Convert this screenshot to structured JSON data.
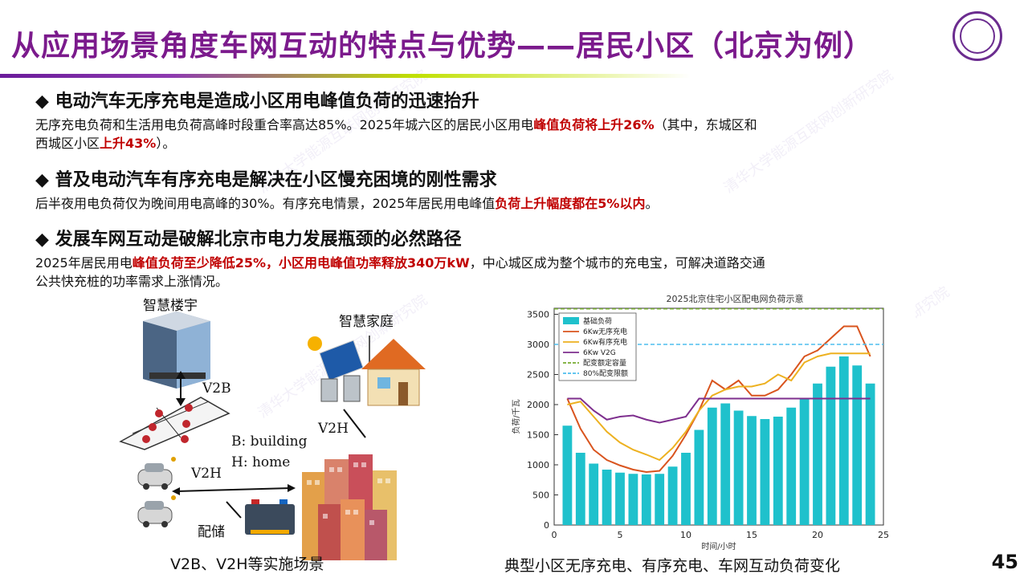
{
  "title": "从应用场景角度车网互动的特点与优势——居民小区（北京为例）",
  "watermark": "清华大学能源互联网创新研究院",
  "sections": [
    {
      "heading": "◆ 电动汽车无序充电是造成小区用电峰值负荷的迅速抬升",
      "p1": "无序充电负荷和生活用电负荷高峰时段重合率高达85%。2025年城六区的居民小区用电",
      "p1_red": "峰值负荷将上升26%",
      "p2": "（其中，东城区和",
      "p3": "西城区小区",
      "p3_red": "上升43%",
      "p4": "）。"
    },
    {
      "heading": "◆ 普及电动汽车有序充电是解决在小区慢充困境的刚性需求",
      "p1": "后半夜用电负荷仅为晚间用电高峰的30%。有序充电情景，2025年居民用电峰值",
      "p1_red": "负荷上升幅度都在5%以内",
      "p2": "。"
    },
    {
      "heading": "◆ 发展车网互动是破解北京市电力发展瓶颈的必然路径",
      "p1": "2025年居民用电",
      "p1_red": "峰值负荷至少降低25%，小区用电峰值功率释放340万kW",
      "p2": "，中心城区成为整个城市的充电宝，可解决道路交通",
      "p3": "公共快充桩的功率需求上涨情况。"
    }
  ],
  "diagram": {
    "smart_building": "智慧楼宇",
    "smart_home": "智慧家庭",
    "v2b": "V2B",
    "v2h_top": "V2H",
    "v2h_left": "V2H",
    "legend_b": "B: building",
    "legend_h": "H: home",
    "storage": "配储",
    "caption": "V2B、V2H等实施场景"
  },
  "chart_data": {
    "type": "bar",
    "title": "2025北京住宅小区配电网负荷示意",
    "xlabel": "时间/小时",
    "ylabel": "负荷/千瓦",
    "xlim": [
      0,
      25
    ],
    "ylim": [
      0,
      3600
    ],
    "xticks": [
      0,
      5,
      10,
      15,
      20,
      25
    ],
    "yticks": [
      0,
      500,
      1000,
      1500,
      2000,
      2500,
      3000,
      3500
    ],
    "legend_position": "top-left",
    "categories": [
      1,
      2,
      3,
      4,
      5,
      6,
      7,
      8,
      9,
      10,
      11,
      12,
      13,
      14,
      15,
      16,
      17,
      18,
      19,
      20,
      21,
      22,
      23,
      24
    ],
    "series": [
      {
        "name": "基础负荷",
        "kind": "bar",
        "color": "#1fc1cc",
        "values": [
          1650,
          1200,
          1020,
          920,
          870,
          850,
          840,
          850,
          970,
          1200,
          1580,
          1950,
          2020,
          1900,
          1810,
          1760,
          1800,
          1950,
          2100,
          2350,
          2630,
          2800,
          2650,
          2350
        ]
      },
      {
        "name": "6Kw无序充电",
        "kind": "line",
        "color": "#d9541e",
        "values": [
          2100,
          1600,
          1250,
          1080,
          990,
          920,
          880,
          900,
          1150,
          1500,
          1900,
          2400,
          2250,
          2400,
          2150,
          2150,
          2250,
          2500,
          2800,
          2900,
          3100,
          3300,
          3300,
          2800
        ]
      },
      {
        "name": "6Kw有序充电",
        "kind": "line",
        "color": "#edb120",
        "values": [
          2000,
          2050,
          1800,
          1550,
          1370,
          1250,
          1170,
          1080,
          1280,
          1550,
          1900,
          2150,
          2250,
          2300,
          2300,
          2350,
          2500,
          2400,
          2700,
          2800,
          2850,
          2850,
          2850,
          2850
        ]
      },
      {
        "name": "6Kw V2G",
        "kind": "line",
        "color": "#7e2f8e",
        "values": [
          2100,
          2100,
          1900,
          1750,
          1800,
          1820,
          1750,
          1700,
          1750,
          1800,
          2100,
          2100,
          2100,
          2100,
          2100,
          2100,
          2100,
          2100,
          2100,
          2100,
          2100,
          2100,
          2100,
          2100
        ]
      },
      {
        "name": "配变额定容量",
        "kind": "hline",
        "color": "#77ac30",
        "dash": true,
        "value": 3750
      },
      {
        "name": "80%配变限额",
        "kind": "hline",
        "color": "#4dbeee",
        "dash": true,
        "value": 3000
      }
    ]
  },
  "chart_caption": "典型小区无序充电、有序充电、车网互动负荷变化",
  "page_number": "45"
}
